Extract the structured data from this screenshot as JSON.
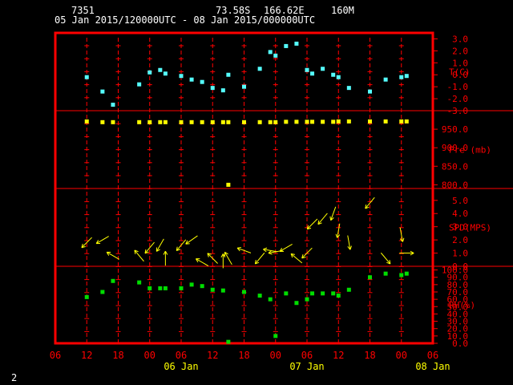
{
  "header": {
    "station": "7351",
    "lat": "73.58S",
    "lon": "166.62E",
    "elev": "160M",
    "range": "05 Jan 2015/120000UTC - 08 Jan 2015/000000UTC"
  },
  "footer_num": "2",
  "colors": {
    "frame": "#ff0000",
    "temp": "#55ffff",
    "pres": "#ffff00",
    "wind": "#ffff00",
    "rh": "#00dd00",
    "text": "#ffffff"
  },
  "chart_data": {
    "type": "scatter",
    "x_unit": "hours from 05 Jan 2015 00 UTC",
    "xlim": [
      6,
      78
    ],
    "x_ticks": [
      6,
      12,
      18,
      24,
      30,
      36,
      42,
      48,
      54,
      60,
      66,
      72,
      78
    ],
    "x_tick_labels": [
      "06",
      "12",
      "18",
      "00",
      "06",
      "12",
      "18",
      "00",
      "06",
      "12",
      "18",
      "00",
      "06"
    ],
    "day_labels": [
      {
        "x": 30,
        "label": "06 Jan"
      },
      {
        "x": 54,
        "label": "07 Jan"
      },
      {
        "x": 78,
        "label": "08 Jan"
      }
    ],
    "panels": [
      {
        "name": "temp",
        "label": "T(C)",
        "ylim": [
          -3.0,
          3.5
        ],
        "ticks": [
          -3.0,
          -2.0,
          -1.0,
          0.0,
          1.0,
          2.0,
          3.0
        ],
        "tick_labels": [
          "-3.0",
          "-2.0",
          "-1.0",
          "0.0",
          "1.0",
          "2.0",
          "3.0"
        ],
        "series": [
          {
            "x": [
              12,
              15,
              17,
              22,
              24,
              26,
              27,
              30,
              32,
              34,
              36,
              38,
              39,
              42,
              45,
              47,
              48,
              50,
              52,
              54,
              55,
              57,
              59,
              60,
              62,
              66,
              69,
              72,
              73
            ],
            "y": [
              -0.2,
              -1.4,
              -2.5,
              -0.8,
              0.2,
              0.4,
              0.1,
              -0.1,
              -0.4,
              -0.6,
              -1.1,
              -1.3,
              0.0,
              -1.0,
              0.5,
              1.9,
              1.6,
              2.4,
              2.6,
              0.4,
              0.1,
              0.5,
              0.0,
              -0.2,
              -1.1,
              -1.4,
              -0.4,
              -0.2,
              -0.1
            ]
          }
        ]
      },
      {
        "name": "pres",
        "label": "Pre (mb)",
        "ylim": [
          790,
          1000
        ],
        "ticks": [
          800.0,
          850.0,
          900.0,
          950.0
        ],
        "tick_labels": [
          "800.0",
          "850.0",
          "900.0",
          "950.0"
        ],
        "series": [
          {
            "x": [
              12,
              15,
              17,
              22,
              24,
              26,
              27,
              30,
              32,
              34,
              36,
              38,
              39,
              42,
              45,
              47,
              48,
              50,
              52,
              54,
              55,
              57,
              59,
              60,
              62,
              66,
              69,
              72,
              73
            ],
            "y": [
              971,
              969,
              969,
              969,
              969,
              969,
              969,
              969,
              969,
              969,
              969,
              969,
              969,
              969,
              969,
              969,
              969,
              970,
              970,
              970,
              970,
              970,
              970,
              971,
              971,
              971,
              971,
              971,
              971
            ]
          },
          {
            "x": [
              39
            ],
            "y": 800,
            "note": "outlier"
          }
        ]
      },
      {
        "name": "spd",
        "label": "SPD(MPS)",
        "ylim": [
          0,
          5.9
        ],
        "ticks": [
          0.0,
          1.0,
          2.0,
          3.0,
          4.0,
          5.0
        ],
        "tick_labels": [
          "0.0",
          "1.0",
          "2.0",
          "3.0",
          "4.0",
          "5.0"
        ],
        "series": [
          {
            "x": [
              12,
              15,
              17,
              22,
              24,
              26,
              27,
              30,
              32,
              34,
              36,
              38,
              39,
              42,
              45,
              47,
              48,
              50,
              52,
              54,
              55,
              57,
              59,
              60,
              62,
              66,
              69,
              72,
              73
            ],
            "y": [
              1.8,
              2.0,
              0.8,
              0.8,
              1.4,
              1.6,
              0.6,
              1.6,
              2.0,
              0.3,
              0.6,
              0.4,
              0.6,
              1.2,
              0.6,
              1.2,
              1.1,
              1.4,
              0.6,
              1.0,
              3.2,
              3.6,
              4.0,
              2.7,
              1.8,
              4.8,
              0.6,
              2.4,
              1.0
            ],
            "dir_deg": [
              225,
              240,
              300,
              320,
              220,
              210,
              0,
              220,
              235,
              300,
              315,
              0,
              330,
              290,
              220,
              280,
              260,
              240,
              310,
              225,
              225,
              220,
              200,
              190,
              170,
              220,
              140,
              170,
              90
            ]
          }
        ]
      },
      {
        "name": "rh",
        "label": "RH(%)",
        "ylim": [
          0,
          105
        ],
        "ticks": [
          0,
          10,
          20,
          30,
          40,
          50,
          60,
          70,
          80,
          90,
          100
        ],
        "tick_labels": [
          "0.0",
          "10.0",
          "20.0",
          "30.0",
          "40.0",
          "50.0",
          "60.0",
          "70.0",
          "80.0",
          "90.0",
          "100.0"
        ],
        "series": [
          {
            "x": [
              12,
              15,
              17,
              22,
              24,
              26,
              27,
              30,
              32,
              34,
              36,
              38,
              39,
              42,
              45,
              47,
              48,
              50,
              52,
              54,
              55,
              57,
              59,
              60,
              62,
              66,
              69,
              72,
              73
            ],
            "y": [
              63,
              70,
              85,
              83,
              75,
              75,
              75,
              75,
              80,
              78,
              73,
              72,
              2,
              70,
              65,
              60,
              10,
              68,
              55,
              60,
              68,
              68,
              68,
              65,
              73,
              90,
              95,
              93,
              95
            ]
          }
        ]
      }
    ]
  }
}
